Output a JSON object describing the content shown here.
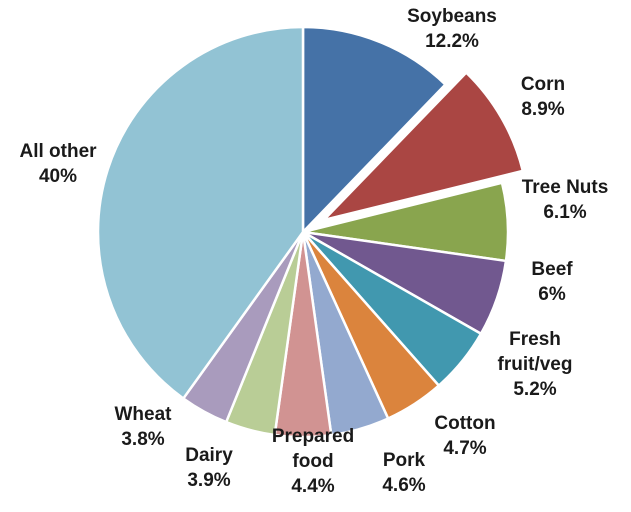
{
  "chart_data": {
    "type": "pie",
    "title": "",
    "slices": [
      {
        "label_lines": [
          "Soybeans"
        ],
        "value_label": "12.2%",
        "value": 12.2,
        "color": "#4572a7",
        "exploded": false
      },
      {
        "label_lines": [
          "Corn"
        ],
        "value_label": "8.9%",
        "value": 8.9,
        "color": "#aa4643",
        "exploded": true
      },
      {
        "label_lines": [
          "Tree Nuts"
        ],
        "value_label": "6.1%",
        "value": 6.1,
        "color": "#89a54e",
        "exploded": false
      },
      {
        "label_lines": [
          "Beef"
        ],
        "value_label": "6%",
        "value": 6.0,
        "color": "#71588f",
        "exploded": false
      },
      {
        "label_lines": [
          "Fresh",
          "fruit/veg"
        ],
        "value_label": "5.2%",
        "value": 5.2,
        "color": "#4198af",
        "exploded": false
      },
      {
        "label_lines": [
          "Cotton"
        ],
        "value_label": "4.7%",
        "value": 4.7,
        "color": "#db843d",
        "exploded": false
      },
      {
        "label_lines": [
          "Pork"
        ],
        "value_label": "4.6%",
        "value": 4.6,
        "color": "#93a9cf",
        "exploded": false
      },
      {
        "label_lines": [
          "Prepared",
          "food"
        ],
        "value_label": "4.4%",
        "value": 4.4,
        "color": "#d19392",
        "exploded": false
      },
      {
        "label_lines": [
          "Dairy"
        ],
        "value_label": "3.9%",
        "value": 3.9,
        "color": "#b9cd96",
        "exploded": false
      },
      {
        "label_lines": [
          "Wheat"
        ],
        "value_label": "3.8%",
        "value": 3.8,
        "color": "#a99bbd",
        "exploded": false
      },
      {
        "label_lines": [
          "All other"
        ],
        "value_label": "40%",
        "value": 40.0,
        "color": "#92c3d4",
        "exploded": false
      }
    ]
  }
}
